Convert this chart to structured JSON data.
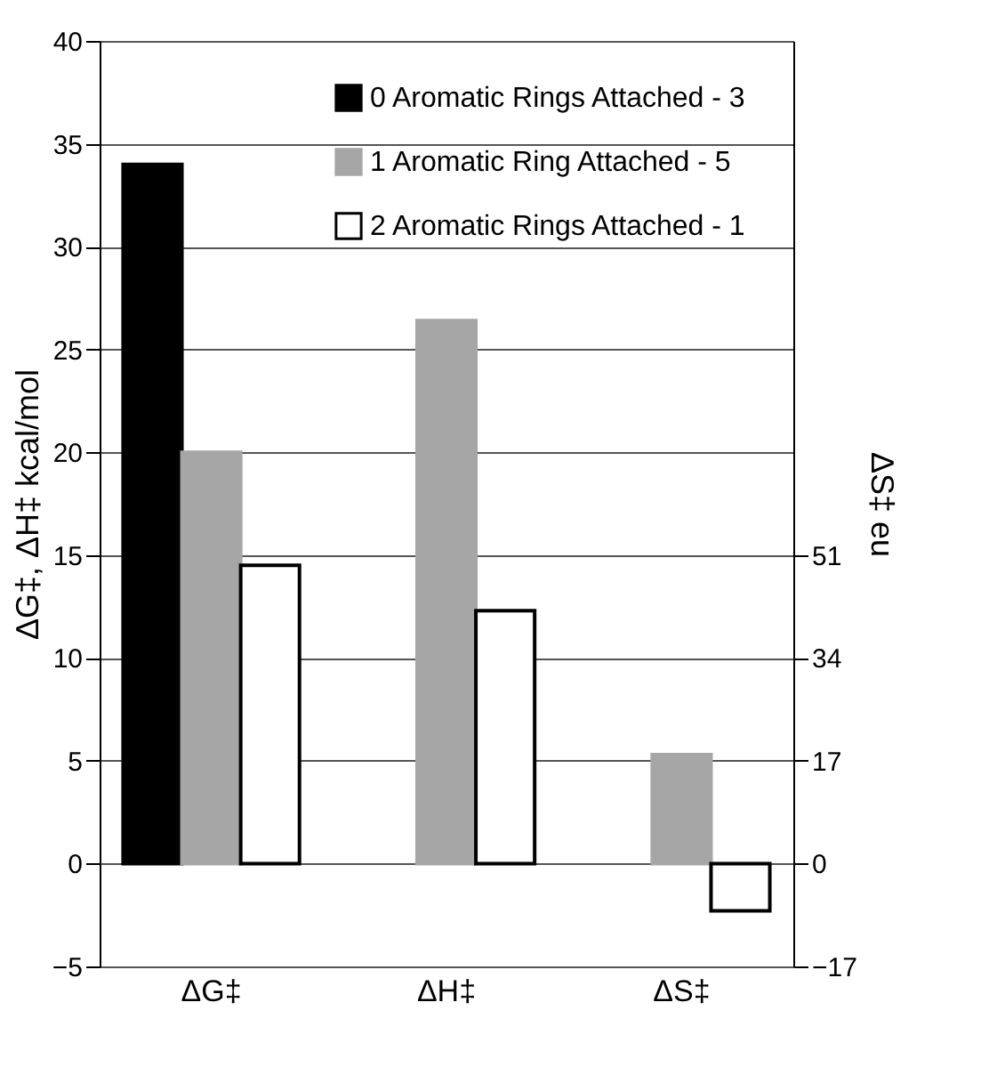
{
  "chart_data": {
    "type": "bar",
    "categories": [
      "ΔG‡",
      "ΔH‡",
      "ΔS‡"
    ],
    "series": [
      {
        "name": "0 Aromatic Rings Attached - 3",
        "color": "#000000",
        "values": [
          34,
          null,
          null
        ]
      },
      {
        "name": "1 Aromatic Ring Attached   - 5",
        "color": "#a6a6a6",
        "values": [
          20,
          26.4,
          5.3
        ]
      },
      {
        "name": "2 Aromatic Rings Attached - 1",
        "color": "#ffffff",
        "values": [
          14.5,
          12.3,
          -2.3
        ]
      }
    ],
    "ylabel": "ΔG‡, ΔH‡ kcal/mol",
    "y2label": "ΔS‡ eu",
    "ylim": [
      -5,
      40
    ],
    "yticks": [
      -5,
      0,
      5,
      10,
      15,
      20,
      25,
      30,
      35,
      40
    ],
    "y2lim": [
      -17,
      136
    ],
    "y2ticks": [
      -17,
      0,
      17,
      34,
      51
    ],
    "grid": "y",
    "legend": "top right"
  }
}
